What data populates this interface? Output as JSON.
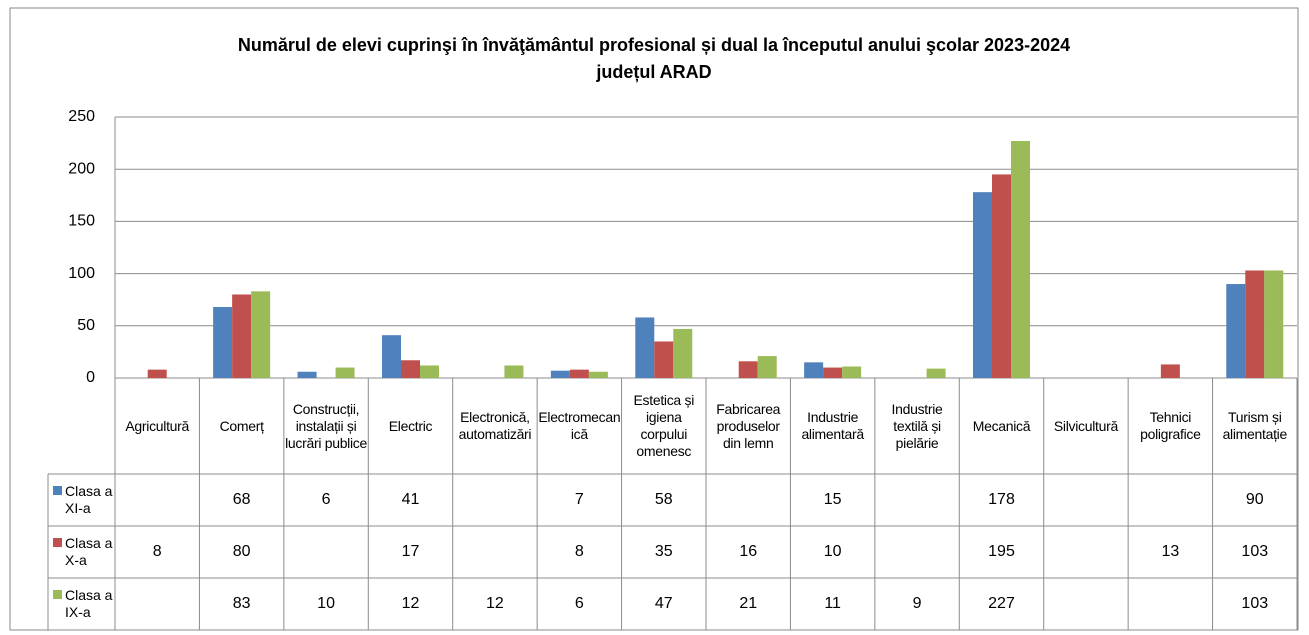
{
  "chart_data": {
    "type": "bar",
    "title": "Numărul de elevi cuprinşi în învăţământul profesional și dual la începutul anului şcolar 2023-2024",
    "subtitle": "județul ARAD",
    "categories": [
      "Agricultură",
      "Comerț",
      "Construcții, instalații și lucrări publice",
      "Electric",
      "Electronică, automatizări",
      "Electromecanică",
      "Estetica și igiena corpului omenesc",
      "Fabricarea produselor din lemn",
      "Industrie alimentară",
      "Industrie textilă și pielărie",
      "Mecanică",
      "Silvicultură",
      "Tehnici poligrafice",
      "Turism și alimentație"
    ],
    "series": [
      {
        "name": "Clasa a XI-a",
        "color": "#4f81bd",
        "values": [
          null,
          68,
          6,
          41,
          null,
          7,
          58,
          null,
          15,
          null,
          178,
          null,
          null,
          90
        ]
      },
      {
        "name": "Clasa a X-a",
        "color": "#c0504d",
        "values": [
          8,
          80,
          null,
          17,
          null,
          8,
          35,
          16,
          10,
          null,
          195,
          null,
          13,
          103
        ]
      },
      {
        "name": "Clasa a IX-a",
        "color": "#9bbb59",
        "values": [
          null,
          83,
          10,
          12,
          12,
          6,
          47,
          21,
          11,
          9,
          227,
          null,
          null,
          103
        ]
      }
    ],
    "ylim": [
      0,
      250
    ],
    "yticks": [
      0,
      50,
      100,
      150,
      200,
      250
    ],
    "grid": true
  }
}
